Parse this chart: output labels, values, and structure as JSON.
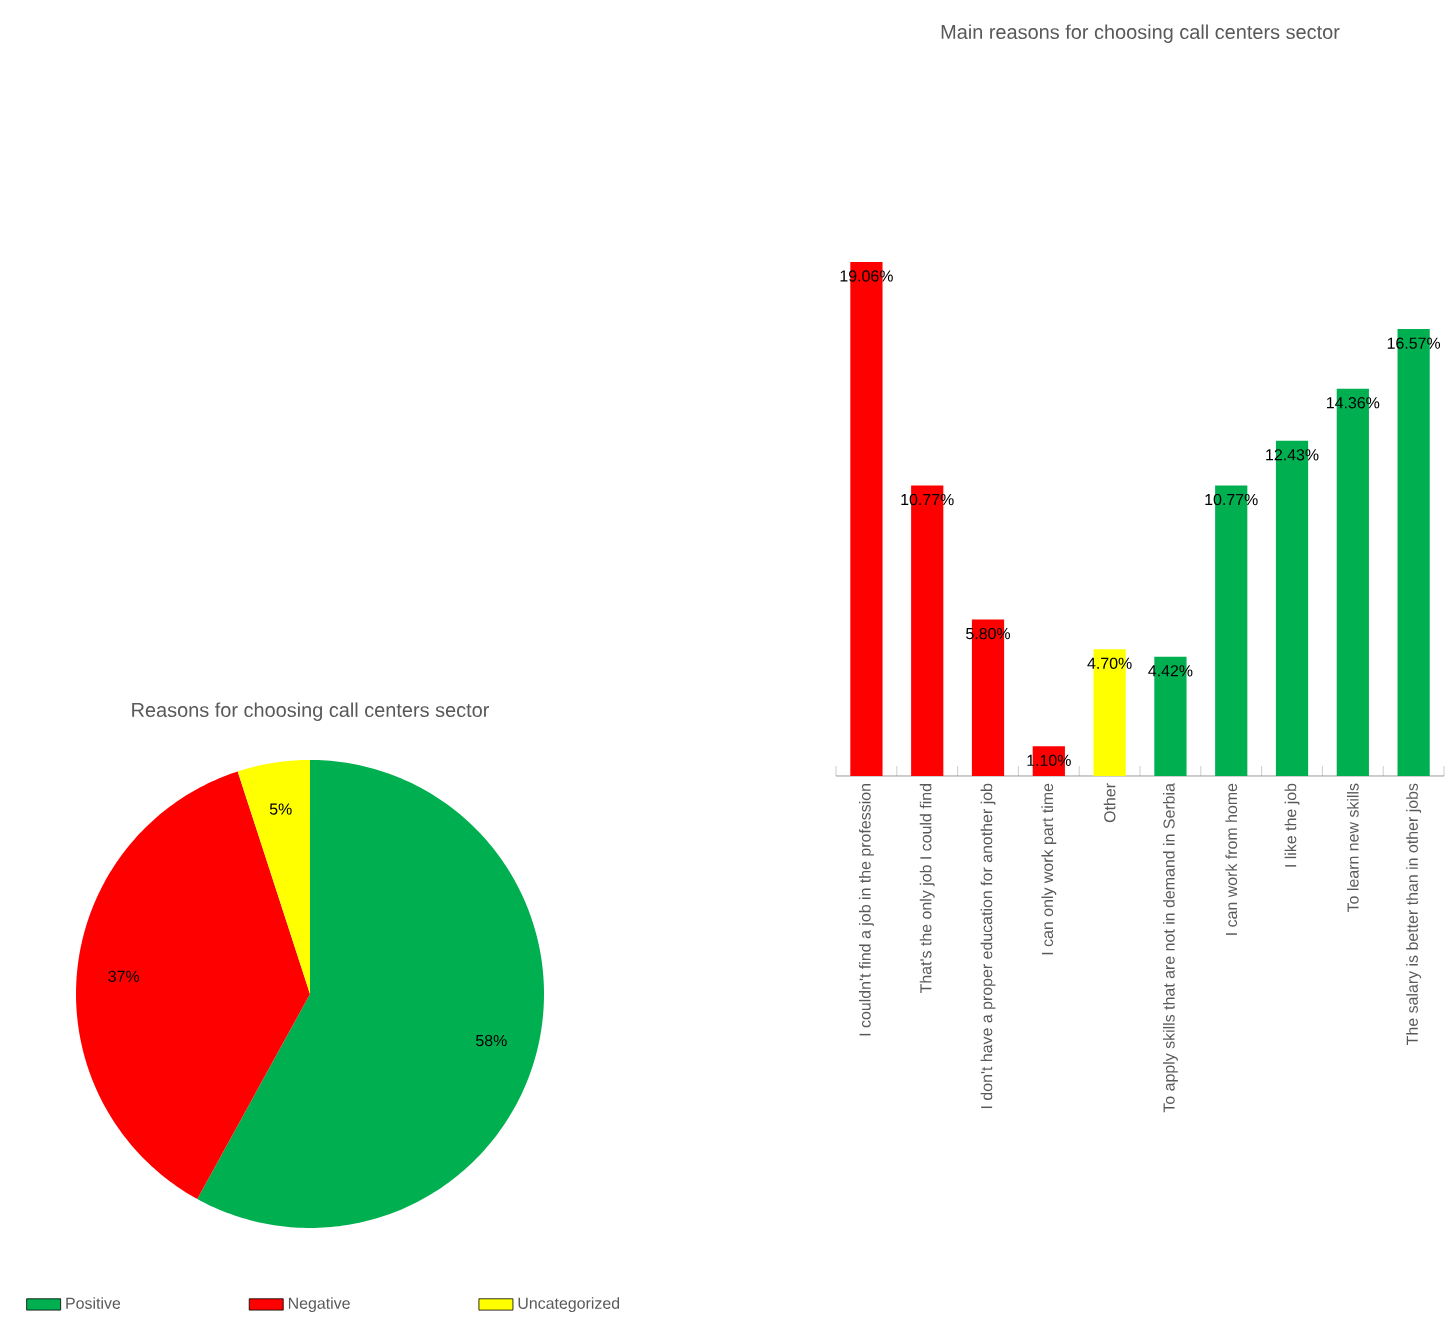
{
  "chart_data": [
    {
      "type": "bar",
      "title": "Main reasons for choosing call centers sector",
      "categories": [
        "I couldn't find a job in the profession",
        "That's the only job I could find",
        "I don't have a proper education for another job",
        "I can only work part time",
        "Other",
        "To apply skills that are not in demand in Serbia",
        "I can work from home",
        "I like the job",
        "To learn new skills",
        "The salary is better than in other jobs"
      ],
      "values": [
        19.06,
        10.77,
        5.8,
        1.1,
        4.7,
        4.42,
        10.77,
        12.43,
        14.36,
        16.57
      ],
      "colors": [
        "#ff0000",
        "#ff0000",
        "#ff0000",
        "#ff0000",
        "#ffff00",
        "#00b050",
        "#00b050",
        "#00b050",
        "#00b050",
        "#00b050"
      ],
      "value_labels": [
        "19.06%",
        "10.77%",
        "5.80%",
        "1.10%",
        "4.70%",
        "4.42%",
        "10.77%",
        "12.43%",
        "14.36%",
        "16.57%"
      ]
    },
    {
      "type": "pie",
      "title": "Reasons for choosing call centers sector",
      "categories": [
        "Positive",
        "Negative",
        "Uncategorized"
      ],
      "values": [
        58,
        37,
        5
      ],
      "colors": [
        "#00b050",
        "#ff0000",
        "#ffff00"
      ],
      "value_labels": [
        "58%",
        "37%",
        "5%"
      ],
      "legend": "bottom"
    }
  ]
}
